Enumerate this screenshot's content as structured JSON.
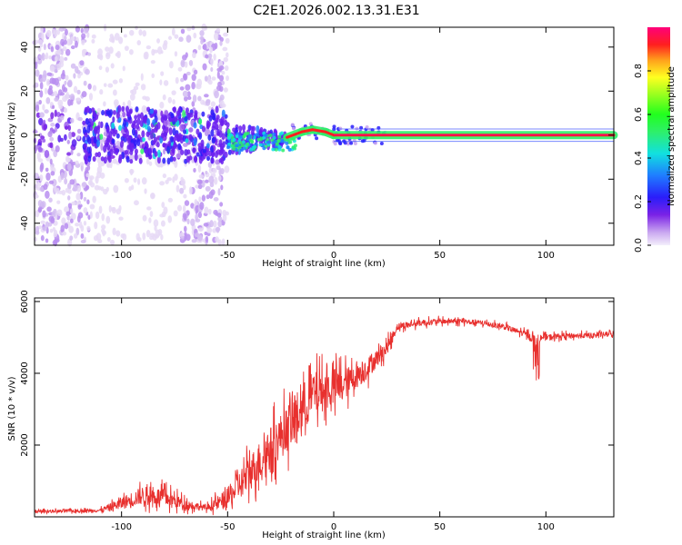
{
  "title": "C2E1.2026.002.13.31.E31",
  "chart_data": [
    {
      "type": "heatmap",
      "xlabel": "Height of straight line (km)",
      "ylabel": "Frequency (Hz)",
      "xlim": [
        -141,
        132
      ],
      "ylim": [
        -50,
        49
      ],
      "xticks": [
        -100,
        -50,
        0,
        50,
        100
      ],
      "yticks": [
        -40,
        -20,
        0,
        20,
        40
      ],
      "colorbar": {
        "label": "Normalized spectral amplitude",
        "range": [
          0,
          1
        ],
        "ticks": [
          0.0,
          0.2,
          0.4,
          0.6,
          0.8
        ]
      }
    },
    {
      "type": "line",
      "xlabel": "Height of straight line (km)",
      "ylabel": "SNR (10 * v/v)",
      "xlim": [
        -141,
        132
      ],
      "ylim": [
        0,
        6100
      ],
      "xticks": [
        -100,
        -50,
        0,
        50,
        100
      ],
      "yticks": [
        2000,
        4000,
        6000
      ],
      "line_color": "#e8302e",
      "trend": {
        "x": [
          -141,
          -110,
          -100,
          -90,
          -80,
          -70,
          -60,
          -50,
          -40,
          -30,
          -20,
          -15,
          -10,
          -5,
          0,
          5,
          10,
          15,
          20,
          25,
          30,
          40,
          50,
          60,
          70,
          80,
          90,
          95,
          100,
          110,
          120,
          132
        ],
        "mean": [
          150,
          180,
          380,
          600,
          550,
          350,
          250,
          500,
          1200,
          1900,
          2600,
          3000,
          3400,
          3500,
          3600,
          3700,
          3900,
          4100,
          4400,
          4700,
          5300,
          5400,
          5450,
          5450,
          5400,
          5300,
          5100,
          4950,
          5000,
          5050,
          5050,
          5100
        ],
        "spread": [
          80,
          100,
          350,
          500,
          500,
          300,
          150,
          600,
          1000,
          1200,
          1300,
          1400,
          1300,
          1100,
          1100,
          900,
          700,
          650,
          500,
          400,
          200,
          180,
          160,
          150,
          150,
          150,
          180,
          250,
          180,
          150,
          150,
          150
        ]
      }
    }
  ]
}
